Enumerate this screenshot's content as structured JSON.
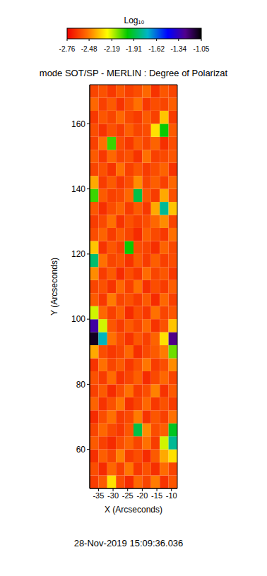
{
  "chart_data": {
    "type": "heatmap",
    "title": "mode SOT/SP - MERLIN : Degree of Polarizat",
    "x_label": "X (Arcseconds)",
    "y_label": "Y (Arcseconds)",
    "annotation": "28-Nov-2019 15:09:36.036",
    "xlim": [
      -38,
      -8
    ],
    "xticks": [
      -35,
      -30,
      -25,
      -20,
      -15,
      -10
    ],
    "ylim": [
      48,
      172
    ],
    "yticks": [
      60,
      80,
      100,
      120,
      140,
      160
    ],
    "colorbar": {
      "label": "Log₁₀",
      "range": [
        -2.76,
        -1.05
      ],
      "ticks": [
        -2.76,
        -2.48,
        -2.19,
        -1.91,
        -1.62,
        -1.34,
        -1.05
      ]
    },
    "heatmap": {
      "x": [
        -36.5,
        -33.5,
        -30.5,
        -27.5,
        -24.5,
        -21.5,
        -18.5,
        -15.5,
        -12.5,
        -9.5
      ],
      "y": [
        50,
        54,
        58,
        62,
        66,
        70,
        74,
        78,
        82,
        86,
        90,
        94,
        98,
        102,
        106,
        110,
        114,
        118,
        122,
        126,
        130,
        134,
        138,
        142,
        146,
        150,
        154,
        158,
        162,
        166,
        170
      ],
      "cells": [
        [
          -2.62,
          -2.55,
          -2.3,
          -2.58,
          -2.66,
          -2.52,
          -2.6,
          -2.48,
          -2.64,
          -2.56
        ],
        [
          -2.58,
          -2.66,
          -2.52,
          -2.61,
          -2.49,
          -2.63,
          -2.57,
          -2.65,
          -2.51,
          -2.6
        ],
        [
          -2.65,
          -2.54,
          -2.6,
          -2.47,
          -2.62,
          -2.58,
          -2.66,
          -2.55,
          -2.4,
          -2.3
        ],
        [
          -2.55,
          -2.61,
          -2.66,
          -2.58,
          -2.53,
          -2.6,
          -2.5,
          -2.62,
          -2.2,
          -1.8
        ],
        [
          -2.6,
          -2.52,
          -2.59,
          -2.63,
          -2.56,
          -1.9,
          -2.45,
          -2.58,
          -2.54,
          -1.95
        ],
        [
          -2.66,
          -2.58,
          -2.5,
          -2.62,
          -2.59,
          -2.48,
          -2.64,
          -2.56,
          -2.61,
          -2.5
        ],
        [
          -2.53,
          -2.64,
          -2.57,
          -2.49,
          -2.65,
          -2.6,
          -2.52,
          -2.63,
          -2.57,
          -2.62
        ],
        [
          -2.61,
          -2.55,
          -2.66,
          -2.58,
          -2.5,
          -2.62,
          -2.58,
          -2.47,
          -2.64,
          -2.55
        ],
        [
          -2.57,
          -2.62,
          -2.51,
          -2.64,
          -2.6,
          -2.54,
          -2.66,
          -2.59,
          -2.52,
          -2.6
        ],
        [
          -2.64,
          -2.5,
          -2.6,
          -2.55,
          -2.63,
          -2.57,
          -2.49,
          -2.62,
          -2.58,
          -2.45
        ],
        [
          -2.4,
          -2.58,
          -2.63,
          -2.6,
          -2.52,
          -2.65,
          -2.59,
          -2.55,
          -2.48,
          -2.1
        ],
        [
          -1.1,
          -1.75,
          -2.5,
          -2.58,
          -2.64,
          -2.56,
          -2.61,
          -2.53,
          -2.3,
          -1.25
        ],
        [
          -1.3,
          -2.2,
          -2.56,
          -2.62,
          -2.55,
          -2.6,
          -2.52,
          -2.64,
          -2.57,
          -2.35
        ],
        [
          -2.2,
          -2.52,
          -2.61,
          -2.54,
          -2.66,
          -2.58,
          -2.63,
          -2.5,
          -2.6,
          -2.56
        ],
        [
          -2.55,
          -2.63,
          -2.48,
          -2.6,
          -2.57,
          -2.62,
          -2.55,
          -2.66,
          -2.52,
          -2.61
        ],
        [
          -2.6,
          -2.57,
          -2.64,
          -2.52,
          -2.61,
          -2.5,
          -2.65,
          -2.58,
          -2.62,
          -2.54
        ],
        [
          -2.45,
          -2.62,
          -2.55,
          -2.66,
          -2.58,
          -2.63,
          -2.51,
          -2.6,
          -2.56,
          -2.63
        ],
        [
          -1.85,
          -2.5,
          -2.6,
          -2.57,
          -2.64,
          -2.55,
          -2.62,
          -2.54,
          -2.61,
          -2.58
        ],
        [
          -2.35,
          -2.64,
          -2.56,
          -2.61,
          -2.0,
          -2.58,
          -2.6,
          -2.65,
          -2.53,
          -2.59
        ],
        [
          -2.58,
          -2.53,
          -2.62,
          -2.55,
          -2.6,
          -2.66,
          -2.54,
          -2.59,
          -2.63,
          -2.5
        ],
        [
          -2.62,
          -2.59,
          -2.5,
          -2.64,
          -2.57,
          -2.61,
          -2.58,
          -2.52,
          -2.45,
          -2.6
        ],
        [
          -2.56,
          -2.65,
          -2.58,
          -2.53,
          -2.62,
          -2.55,
          -2.63,
          -2.4,
          -1.8,
          -2.35
        ],
        [
          -2.05,
          -2.55,
          -2.61,
          -2.59,
          -2.52,
          -1.9,
          -2.56,
          -2.62,
          -2.4,
          -2.57
        ],
        [
          -2.4,
          -2.62,
          -2.55,
          -2.63,
          -2.58,
          -2.45,
          -2.6,
          -2.54,
          -2.61,
          -2.52
        ],
        [
          -2.6,
          -2.57,
          -2.64,
          -2.5,
          -2.61,
          -2.56,
          -2.62,
          -2.58,
          -2.53,
          -2.64
        ],
        [
          -2.55,
          -2.63,
          -2.52,
          -2.6,
          -2.57,
          -2.64,
          -2.5,
          -2.61,
          -2.59,
          -2.56
        ],
        [
          -2.61,
          -2.5,
          -2.05,
          -2.58,
          -2.63,
          -2.55,
          -2.6,
          -2.53,
          -2.65,
          -2.58
        ],
        [
          -2.58,
          -2.64,
          -2.57,
          -2.62,
          -2.54,
          -2.6,
          -2.58,
          -2.3,
          -2.0,
          -2.55
        ],
        [
          -2.63,
          -2.56,
          -2.6,
          -2.52,
          -2.59,
          -2.62,
          -2.55,
          -2.61,
          -2.35,
          -2.62
        ],
        [
          -2.52,
          -2.61,
          -2.55,
          -2.64,
          -2.57,
          -2.5,
          -2.63,
          -2.58,
          -2.6,
          -2.54
        ],
        [
          -2.6,
          -2.57,
          -2.63,
          -2.56,
          -2.61,
          -2.58,
          -2.52,
          -2.64,
          -2.56,
          -2.6
        ]
      ]
    }
  }
}
